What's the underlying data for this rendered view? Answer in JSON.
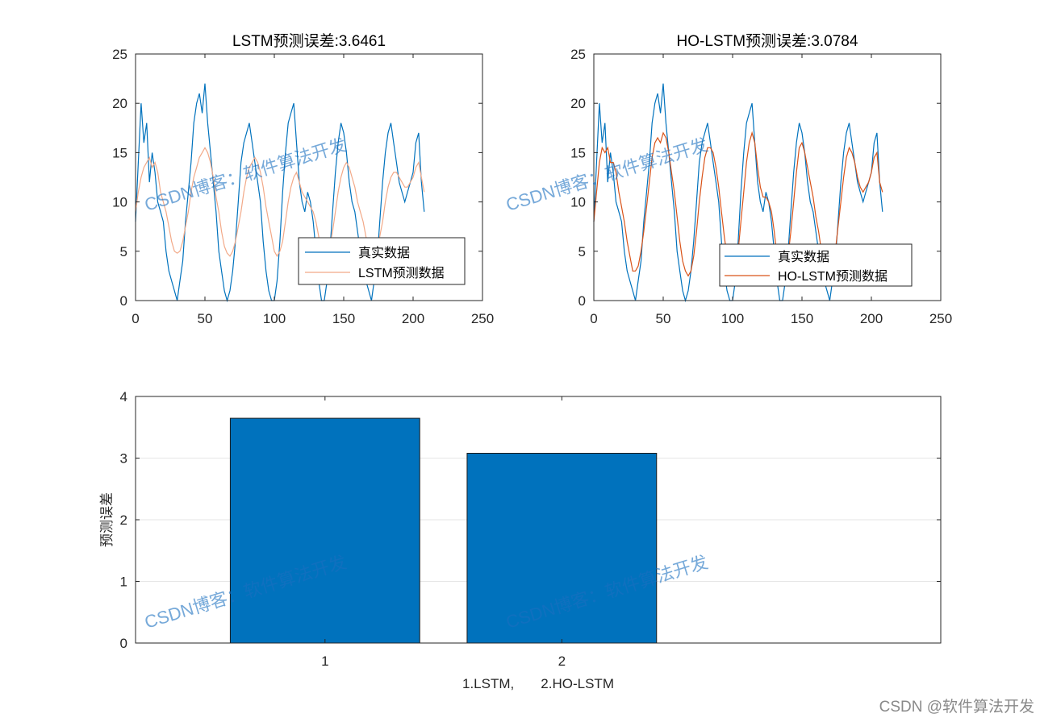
{
  "colors": {
    "true_series": "#0072BD",
    "lstm_series": "#F2A988",
    "holstm_series": "#D95319",
    "bar": "#0072BD"
  },
  "watermarks": {
    "text": "CSDN博客：软件算法开发",
    "corner": "CSDN @软件算法开发"
  },
  "chart_data": [
    {
      "type": "line",
      "title": "LSTM预测误差:3.6461",
      "xlim": [
        0,
        250
      ],
      "ylim": [
        0,
        25
      ],
      "xticks": [
        0,
        50,
        100,
        150,
        200,
        250
      ],
      "yticks": [
        0,
        5,
        10,
        15,
        20,
        25
      ],
      "legend": "bottom-right",
      "series": [
        {
          "name": "真实数据",
          "color_key": "true_series",
          "x": [
            0,
            2,
            4,
            6,
            8,
            10,
            12,
            14,
            16,
            18,
            20,
            22,
            24,
            26,
            28,
            30,
            32,
            34,
            36,
            38,
            40,
            42,
            44,
            46,
            48,
            50,
            52,
            54,
            56,
            58,
            60,
            62,
            64,
            66,
            68,
            70,
            72,
            74,
            76,
            78,
            80,
            82,
            84,
            86,
            88,
            90,
            92,
            94,
            96,
            98,
            100,
            102,
            104,
            106,
            108,
            110,
            112,
            114,
            116,
            118,
            120,
            122,
            124,
            126,
            128,
            130,
            132,
            134,
            136,
            138,
            140,
            142,
            144,
            146,
            148,
            150,
            152,
            154,
            156,
            158,
            160,
            162,
            164,
            166,
            168,
            170,
            172,
            174,
            176,
            178,
            180,
            182,
            184,
            186,
            188,
            190,
            192,
            194,
            196,
            198,
            200,
            202,
            204,
            206,
            208
          ],
          "y": [
            8,
            14,
            20,
            16,
            18,
            12,
            15,
            13,
            10,
            9,
            8,
            5,
            3,
            2,
            1,
            0,
            2,
            4,
            8,
            11,
            14,
            18,
            20,
            21,
            19,
            22,
            18,
            15,
            12,
            9,
            5,
            3,
            1,
            0,
            1,
            3,
            6,
            10,
            14,
            16,
            17,
            18,
            16,
            14,
            12,
            10,
            6,
            3,
            1,
            0,
            0,
            2,
            6,
            11,
            15,
            18,
            19,
            20,
            16,
            12,
            10,
            9,
            11,
            10,
            8,
            5,
            2,
            0,
            0,
            2,
            5,
            9,
            13,
            16,
            18,
            17,
            15,
            12,
            10,
            9,
            7,
            5,
            3,
            2,
            1,
            0,
            2,
            4,
            8,
            12,
            15,
            17,
            18,
            16,
            14,
            12,
            11,
            10,
            11,
            12,
            13,
            16,
            17,
            12,
            9
          ]
        },
        {
          "name": "LSTM预测数据",
          "color_key": "lstm_series",
          "x": [
            0,
            2,
            4,
            6,
            8,
            10,
            12,
            14,
            16,
            18,
            20,
            22,
            24,
            26,
            28,
            30,
            32,
            34,
            36,
            38,
            40,
            42,
            44,
            46,
            48,
            50,
            52,
            54,
            56,
            58,
            60,
            62,
            64,
            66,
            68,
            70,
            72,
            74,
            76,
            78,
            80,
            82,
            84,
            86,
            88,
            90,
            92,
            94,
            96,
            98,
            100,
            102,
            104,
            106,
            108,
            110,
            112,
            114,
            116,
            118,
            120,
            122,
            124,
            126,
            128,
            130,
            132,
            134,
            136,
            138,
            140,
            142,
            144,
            146,
            148,
            150,
            152,
            154,
            156,
            158,
            160,
            162,
            164,
            166,
            168,
            170,
            172,
            174,
            176,
            178,
            180,
            182,
            184,
            186,
            188,
            190,
            192,
            194,
            196,
            198,
            200,
            202,
            204,
            206,
            208
          ],
          "y": [
            9,
            11,
            12.5,
            13.5,
            14,
            14.5,
            13.5,
            14,
            13,
            11,
            10,
            9,
            7.5,
            6,
            5,
            4.8,
            5,
            6,
            7.5,
            9,
            11,
            12.5,
            13.5,
            14.5,
            15,
            15.5,
            15,
            14,
            12.5,
            10.5,
            9,
            7,
            5.5,
            4.8,
            4.5,
            5,
            6,
            7.5,
            9,
            11,
            12.5,
            13.5,
            14,
            14.5,
            14,
            13,
            11.5,
            9.5,
            8,
            6.5,
            5,
            4.5,
            5,
            6,
            8,
            10,
            11.5,
            12.5,
            13,
            12,
            11,
            10.5,
            10,
            9.5,
            9,
            8,
            6.5,
            5,
            4.5,
            4.8,
            5.5,
            7,
            9,
            11,
            12.5,
            13.5,
            14,
            13.5,
            12.5,
            11.5,
            10,
            9,
            8,
            6.5,
            5.5,
            5,
            4.5,
            5,
            6.5,
            8,
            10,
            11.5,
            12.5,
            13,
            13,
            12.5,
            12,
            11.5,
            11.5,
            12,
            12.5,
            13.5,
            14,
            12.5,
            11
          ]
        }
      ]
    },
    {
      "type": "line",
      "title": "HO-LSTM预测误差:3.0784",
      "xlim": [
        0,
        250
      ],
      "ylim": [
        0,
        25
      ],
      "xticks": [
        0,
        50,
        100,
        150,
        200,
        250
      ],
      "yticks": [
        0,
        5,
        10,
        15,
        20,
        25
      ],
      "legend": "bottom-right",
      "series": [
        {
          "name": "真实数据",
          "color_key": "true_series",
          "x": [
            0,
            2,
            4,
            6,
            8,
            10,
            12,
            14,
            16,
            18,
            20,
            22,
            24,
            26,
            28,
            30,
            32,
            34,
            36,
            38,
            40,
            42,
            44,
            46,
            48,
            50,
            52,
            54,
            56,
            58,
            60,
            62,
            64,
            66,
            68,
            70,
            72,
            74,
            76,
            78,
            80,
            82,
            84,
            86,
            88,
            90,
            92,
            94,
            96,
            98,
            100,
            102,
            104,
            106,
            108,
            110,
            112,
            114,
            116,
            118,
            120,
            122,
            124,
            126,
            128,
            130,
            132,
            134,
            136,
            138,
            140,
            142,
            144,
            146,
            148,
            150,
            152,
            154,
            156,
            158,
            160,
            162,
            164,
            166,
            168,
            170,
            172,
            174,
            176,
            178,
            180,
            182,
            184,
            186,
            188,
            190,
            192,
            194,
            196,
            198,
            200,
            202,
            204,
            206,
            208
          ],
          "y": [
            8,
            14,
            20,
            16,
            18,
            12,
            15,
            13,
            10,
            9,
            8,
            5,
            3,
            2,
            1,
            0,
            2,
            4,
            8,
            11,
            14,
            18,
            20,
            21,
            19,
            22,
            18,
            15,
            12,
            9,
            5,
            3,
            1,
            0,
            1,
            3,
            6,
            10,
            14,
            16,
            17,
            18,
            16,
            14,
            12,
            10,
            6,
            3,
            1,
            0,
            0,
            2,
            6,
            11,
            15,
            18,
            19,
            20,
            16,
            12,
            10,
            9,
            11,
            10,
            8,
            5,
            2,
            0,
            0,
            2,
            5,
            9,
            13,
            16,
            18,
            17,
            15,
            12,
            10,
            9,
            7,
            5,
            3,
            2,
            1,
            0,
            2,
            4,
            8,
            12,
            15,
            17,
            18,
            16,
            14,
            12,
            11,
            10,
            11,
            12,
            13,
            16,
            17,
            12,
            9
          ]
        },
        {
          "name": "HO-LSTM预测数据",
          "color_key": "holstm_series",
          "x": [
            0,
            2,
            4,
            6,
            8,
            10,
            12,
            14,
            16,
            18,
            20,
            22,
            24,
            26,
            28,
            30,
            32,
            34,
            36,
            38,
            40,
            42,
            44,
            46,
            48,
            50,
            52,
            54,
            56,
            58,
            60,
            62,
            64,
            66,
            68,
            70,
            72,
            74,
            76,
            78,
            80,
            82,
            84,
            86,
            88,
            90,
            92,
            94,
            96,
            98,
            100,
            102,
            104,
            106,
            108,
            110,
            112,
            114,
            116,
            118,
            120,
            122,
            124,
            126,
            128,
            130,
            132,
            134,
            136,
            138,
            140,
            142,
            144,
            146,
            148,
            150,
            152,
            154,
            156,
            158,
            160,
            162,
            164,
            166,
            168,
            170,
            172,
            174,
            176,
            178,
            180,
            182,
            184,
            186,
            188,
            190,
            192,
            194,
            196,
            198,
            200,
            202,
            204,
            206,
            208
          ],
          "y": [
            8,
            11,
            14,
            15.5,
            15,
            15.5,
            14,
            14,
            13,
            11,
            9.5,
            8,
            6,
            4.5,
            3,
            3,
            3.5,
            5,
            7,
            9.5,
            12,
            14.5,
            16,
            16.5,
            16,
            17,
            16.5,
            15,
            13,
            11,
            8.5,
            6,
            4,
            3,
            2.5,
            3,
            4.5,
            7,
            10,
            12.5,
            14.5,
            15.5,
            15.5,
            15,
            13.5,
            11.5,
            9,
            6.5,
            4.5,
            3,
            2.5,
            3,
            5,
            8,
            11,
            14,
            16,
            17,
            16,
            13.5,
            11.5,
            10.5,
            10.5,
            10,
            9,
            7,
            4.5,
            3,
            2.5,
            3,
            4.5,
            7,
            10,
            13,
            15.5,
            16,
            15,
            13.5,
            12,
            10.5,
            8.5,
            7,
            5,
            4,
            3,
            3,
            3.5,
            5,
            7.5,
            10,
            12.5,
            14.5,
            15.5,
            15,
            14,
            12.5,
            11.5,
            11,
            11.5,
            12,
            13,
            14.5,
            15,
            12,
            11
          ]
        }
      ]
    },
    {
      "type": "bar",
      "categories": [
        "1",
        "2"
      ],
      "values": [
        3.6461,
        3.0784
      ],
      "xlabel": "1.LSTM,       2.HO-LSTM",
      "ylabel": "预测误差",
      "ylim": [
        0,
        4
      ],
      "yticks": [
        0,
        1,
        2,
        3,
        4
      ],
      "xlim": [
        0.2,
        3.6
      ]
    }
  ]
}
